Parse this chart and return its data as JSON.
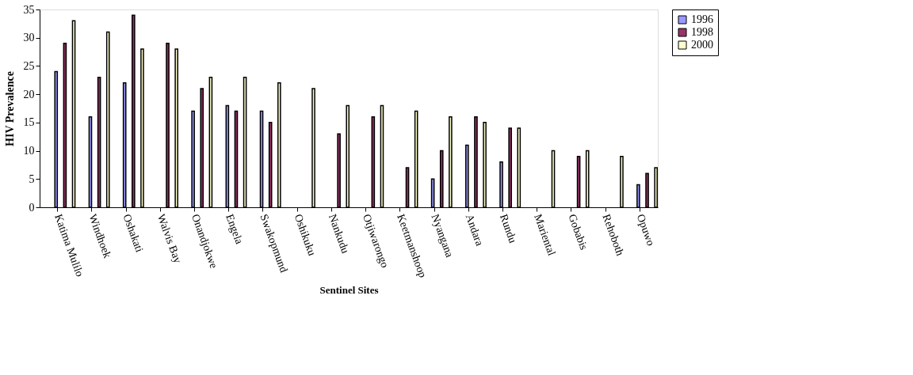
{
  "chart_data": {
    "type": "bar",
    "xlabel": "Sentinel Sites",
    "ylabel": "HIV Prevalence",
    "categories": [
      "Katima Mulilo",
      "Windhoek",
      "Oshakati",
      "Walvis Bay",
      "Onandjokwe",
      "Engela",
      "Swakopmund",
      "Oshikuku",
      "Nankudu",
      "Otjiwarongo",
      "Keetmanshoop",
      "Nyangana",
      "Andara",
      "Rundu",
      "Mariental",
      "Gobabis",
      "Rehoboth",
      "Opuwo"
    ],
    "series": [
      {
        "name": "1996",
        "color": "#9999ff",
        "values": [
          24,
          16,
          22,
          null,
          17,
          18,
          17,
          null,
          null,
          null,
          null,
          5,
          11,
          8,
          null,
          null,
          null,
          4
        ]
      },
      {
        "name": "1998",
        "color": "#993366",
        "values": [
          29,
          23,
          34,
          29,
          21,
          17,
          15,
          null,
          13,
          16,
          7,
          10,
          16,
          14,
          null,
          9,
          null,
          6
        ]
      },
      {
        "name": "2000",
        "color": "#ffffcc",
        "values": [
          33,
          31,
          28,
          28,
          23,
          23,
          22,
          21,
          18,
          18,
          17,
          16,
          15,
          14,
          10,
          10,
          9,
          7
        ]
      }
    ],
    "ylim": [
      0,
      35
    ],
    "yticks": [
      0,
      5,
      10,
      15,
      20,
      25,
      30,
      35
    ],
    "grid": false,
    "legend": "right"
  }
}
